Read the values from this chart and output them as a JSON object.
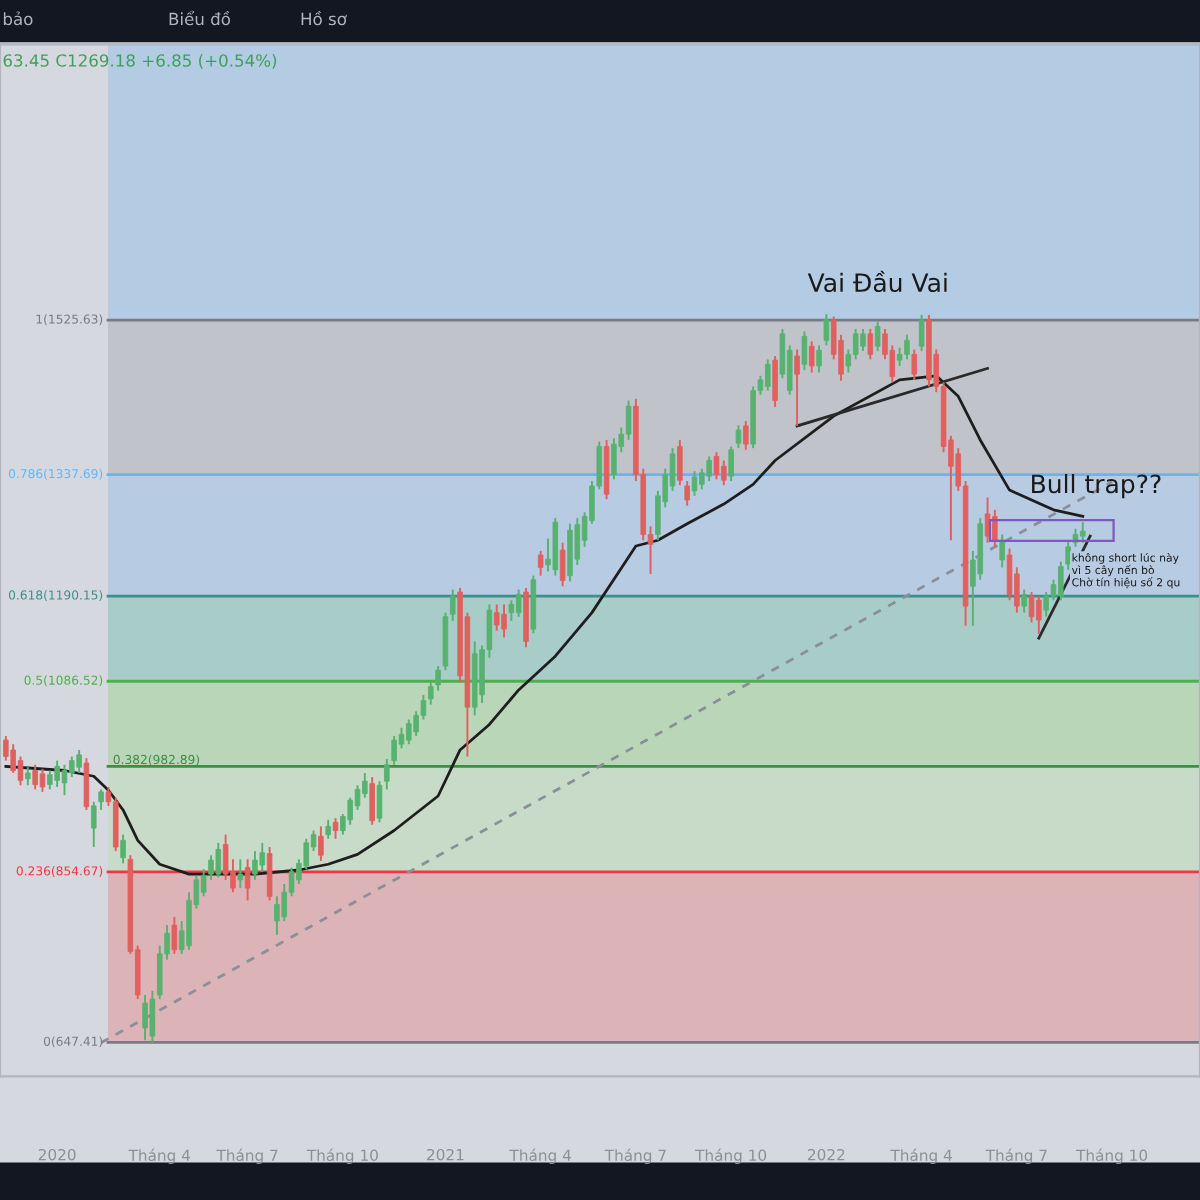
{
  "chart_data": {
    "type": "candlestick",
    "categories": [
      null,
      null,
      null,
      null,
      null,
      null,
      null,
      "2020",
      null,
      null,
      null,
      null,
      null,
      null,
      null,
      null,
      null,
      null,
      null,
      null,
      null,
      "Tháng 4",
      null,
      null,
      null,
      null,
      null,
      null,
      null,
      null,
      null,
      null,
      null,
      "Tháng 7",
      null,
      null,
      null,
      null,
      null,
      null,
      null,
      null,
      null,
      null,
      null,
      null,
      "Tháng 10",
      null,
      null,
      null,
      null,
      null,
      null,
      null,
      null,
      null,
      null,
      null,
      null,
      null,
      "2021",
      null,
      null,
      null,
      null,
      null,
      null,
      null,
      null,
      null,
      null,
      null,
      null,
      "Tháng 4",
      null,
      null,
      null,
      null,
      null,
      null,
      null,
      null,
      null,
      null,
      null,
      null,
      "Tháng 7",
      null,
      null,
      null,
      null,
      null,
      null,
      null,
      null,
      null,
      null,
      null,
      null,
      "Tháng 10",
      null,
      null,
      null,
      null,
      null,
      null,
      null,
      null,
      null,
      null,
      null,
      null,
      "2022",
      null,
      null,
      null,
      null,
      null,
      null,
      null,
      null,
      null,
      null,
      null,
      null,
      "Tháng 4",
      null,
      null,
      null,
      null,
      null,
      null,
      null,
      null,
      null,
      null,
      null,
      null,
      "Tháng 7",
      null,
      null,
      null,
      null,
      null,
      null,
      null,
      null,
      null,
      null,
      null,
      null,
      "Tháng 10"
    ],
    "ohlc": [
      [
        1015,
        1020,
        990,
        995
      ],
      [
        1003,
        1010,
        975,
        978
      ],
      [
        990,
        995,
        960,
        966
      ],
      [
        968,
        982,
        960,
        975
      ],
      [
        978,
        985,
        955,
        961
      ],
      [
        974,
        980,
        952,
        958
      ],
      [
        961,
        978,
        955,
        973
      ],
      [
        966,
        990,
        958,
        983
      ],
      [
        963,
        985,
        948,
        978
      ],
      [
        975,
        995,
        970,
        990
      ],
      [
        982,
        1003,
        975,
        997
      ],
      [
        987,
        993,
        930,
        934
      ],
      [
        908,
        940,
        885,
        935
      ],
      [
        940,
        955,
        930,
        952
      ],
      [
        952,
        958,
        935,
        940
      ],
      [
        940,
        945,
        880,
        885
      ],
      [
        872,
        900,
        865,
        893
      ],
      [
        870,
        875,
        755,
        758
      ],
      [
        760,
        765,
        700,
        705
      ],
      [
        665,
        705,
        650,
        695
      ],
      [
        655,
        710,
        647,
        700
      ],
      [
        705,
        765,
        700,
        755
      ],
      [
        755,
        790,
        748,
        780
      ],
      [
        790,
        800,
        755,
        760
      ],
      [
        760,
        795,
        755,
        783
      ],
      [
        765,
        830,
        760,
        820
      ],
      [
        815,
        850,
        810,
        845
      ],
      [
        830,
        858,
        825,
        850
      ],
      [
        852,
        875,
        845,
        869
      ],
      [
        852,
        890,
        848,
        882
      ],
      [
        888,
        900,
        845,
        852
      ],
      [
        855,
        870,
        830,
        835
      ],
      [
        845,
        870,
        835,
        852
      ],
      [
        860,
        870,
        820,
        835
      ],
      [
        852,
        880,
        845,
        869
      ],
      [
        863,
        890,
        855,
        878
      ],
      [
        877,
        885,
        820,
        825
      ],
      [
        795,
        825,
        778,
        815
      ],
      [
        800,
        840,
        795,
        830
      ],
      [
        830,
        860,
        825,
        855
      ],
      [
        845,
        870,
        840,
        865
      ],
      [
        862,
        895,
        858,
        890
      ],
      [
        885,
        905,
        880,
        900
      ],
      [
        898,
        910,
        868,
        875
      ],
      [
        900,
        918,
        895,
        910
      ],
      [
        915,
        920,
        895,
        905
      ],
      [
        905,
        925,
        900,
        922
      ],
      [
        918,
        945,
        912,
        942
      ],
      [
        935,
        960,
        930,
        955
      ],
      [
        950,
        975,
        945,
        965
      ],
      [
        962,
        970,
        912,
        917
      ],
      [
        920,
        965,
        915,
        960
      ],
      [
        965,
        992,
        955,
        985
      ],
      [
        990,
        1020,
        985,
        1015
      ],
      [
        1010,
        1030,
        1005,
        1022
      ],
      [
        1015,
        1040,
        1010,
        1035
      ],
      [
        1025,
        1050,
        1020,
        1045
      ],
      [
        1045,
        1070,
        1040,
        1063
      ],
      [
        1065,
        1085,
        1058,
        1080
      ],
      [
        1082,
        1105,
        1075,
        1100
      ],
      [
        1105,
        1170,
        1100,
        1165
      ],
      [
        1168,
        1198,
        1160,
        1190
      ],
      [
        1195,
        1200,
        1085,
        1093
      ],
      [
        1165,
        1170,
        995,
        1055
      ],
      [
        1055,
        1135,
        1045,
        1120
      ],
      [
        1070,
        1130,
        1060,
        1125
      ],
      [
        1125,
        1180,
        1115,
        1173
      ],
      [
        1170,
        1180,
        1148,
        1155
      ],
      [
        1168,
        1180,
        1140,
        1150
      ],
      [
        1170,
        1185,
        1160,
        1180
      ],
      [
        1170,
        1198,
        1165,
        1192
      ],
      [
        1195,
        1200,
        1128,
        1135
      ],
      [
        1150,
        1215,
        1145,
        1210
      ],
      [
        1240,
        1245,
        1215,
        1225
      ],
      [
        1228,
        1260,
        1220,
        1235
      ],
      [
        1222,
        1285,
        1215,
        1280
      ],
      [
        1246,
        1255,
        1202,
        1209
      ],
      [
        1215,
        1278,
        1208,
        1270
      ],
      [
        1235,
        1285,
        1228,
        1277
      ],
      [
        1258,
        1292,
        1250,
        1287
      ],
      [
        1282,
        1330,
        1278,
        1324
      ],
      [
        1324,
        1378,
        1320,
        1372
      ],
      [
        1372,
        1380,
        1308,
        1314
      ],
      [
        1338,
        1382,
        1332,
        1375
      ],
      [
        1372,
        1395,
        1365,
        1387
      ],
      [
        1387,
        1428,
        1380,
        1421
      ],
      [
        1421,
        1430,
        1330,
        1338
      ],
      [
        1338,
        1345,
        1258,
        1265
      ],
      [
        1265,
        1275,
        1217,
        1253
      ],
      [
        1265,
        1318,
        1258,
        1312
      ],
      [
        1305,
        1345,
        1298,
        1338
      ],
      [
        1324,
        1370,
        1318,
        1363
      ],
      [
        1372,
        1380,
        1325,
        1331
      ],
      [
        1324,
        1330,
        1300,
        1307
      ],
      [
        1318,
        1342,
        1312,
        1335
      ],
      [
        1326,
        1345,
        1320,
        1340
      ],
      [
        1336,
        1360,
        1330,
        1355
      ],
      [
        1360,
        1365,
        1332,
        1338
      ],
      [
        1348,
        1355,
        1325,
        1331
      ],
      [
        1336,
        1372,
        1330,
        1368
      ],
      [
        1376,
        1398,
        1370,
        1392
      ],
      [
        1397,
        1403,
        1368,
        1375
      ],
      [
        1375,
        1445,
        1370,
        1440
      ],
      [
        1440,
        1458,
        1435,
        1453
      ],
      [
        1445,
        1478,
        1440,
        1472
      ],
      [
        1477,
        1482,
        1420,
        1428
      ],
      [
        1460,
        1515,
        1455,
        1509
      ],
      [
        1440,
        1495,
        1435,
        1489
      ],
      [
        1482,
        1490,
        1397,
        1460
      ],
      [
        1472,
        1512,
        1465,
        1506
      ],
      [
        1494,
        1500,
        1462,
        1470
      ],
      [
        1470,
        1495,
        1462,
        1489
      ],
      [
        1501,
        1533,
        1495,
        1526
      ],
      [
        1526,
        1530,
        1478,
        1484
      ],
      [
        1501,
        1508,
        1452,
        1460
      ],
      [
        1470,
        1490,
        1462,
        1484
      ],
      [
        1484,
        1515,
        1478,
        1509
      ],
      [
        1494,
        1515,
        1488,
        1509
      ],
      [
        1509,
        1515,
        1478,
        1484
      ],
      [
        1494,
        1524,
        1488,
        1518
      ],
      [
        1509,
        1515,
        1478,
        1484
      ],
      [
        1489,
        1495,
        1450,
        1457
      ],
      [
        1477,
        1492,
        1470,
        1484
      ],
      [
        1484,
        1508,
        1478,
        1501
      ],
      [
        1484,
        1490,
        1453,
        1460
      ],
      [
        1494,
        1532,
        1488,
        1526
      ],
      [
        1526,
        1532,
        1445,
        1453
      ],
      [
        1484,
        1490,
        1438,
        1445
      ],
      [
        1445,
        1450,
        1365,
        1372
      ],
      [
        1380,
        1385,
        1258,
        1348
      ],
      [
        1363,
        1370,
        1318,
        1324
      ],
      [
        1324,
        1330,
        1154,
        1178
      ],
      [
        1202,
        1245,
        1154,
        1234
      ],
      [
        1217,
        1285,
        1210,
        1278
      ],
      [
        1290,
        1310,
        1255,
        1263
      ],
      [
        1287,
        1295,
        1250,
        1258
      ],
      [
        1234,
        1265,
        1225,
        1258
      ],
      [
        1240,
        1248,
        1185,
        1192
      ],
      [
        1217,
        1225,
        1170,
        1178
      ],
      [
        1178,
        1198,
        1170,
        1192
      ],
      [
        1190,
        1195,
        1158,
        1165
      ],
      [
        1185,
        1190,
        1144,
        1161
      ],
      [
        1173,
        1195,
        1165,
        1190
      ],
      [
        1190,
        1210,
        1185,
        1204
      ],
      [
        1190,
        1232,
        1185,
        1226
      ],
      [
        1229,
        1258,
        1222,
        1250
      ],
      [
        1255,
        1272,
        1250,
        1265
      ],
      [
        1263,
        1280,
        1255,
        1269
      ],
      null,
      null,
      null,
      null
    ],
    "series": [
      {
        "type": "line",
        "color": "#1e1e1e",
        "line_style": "solid",
        "values": [
          983,
          null,
          null,
          null,
          null,
          null,
          null,
          null,
          978,
          null,
          null,
          null,
          971,
          null,
          954,
          null,
          930,
          null,
          893,
          null,
          null,
          864,
          null,
          null,
          null,
          852,
          null,
          null,
          null,
          852,
          null,
          null,
          null,
          null,
          852,
          null,
          null,
          null,
          null,
          null,
          857,
          null,
          null,
          null,
          864,
          null,
          null,
          null,
          876,
          null,
          null,
          null,
          null,
          905,
          null,
          null,
          null,
          null,
          null,
          947,
          null,
          null,
          1003,
          null,
          null,
          null,
          1034,
          null,
          null,
          null,
          1076,
          null,
          null,
          null,
          null,
          1117,
          null,
          null,
          null,
          null,
          1170,
          null,
          null,
          null,
          1224,
          null,
          1251,
          null,
          null,
          1258,
          null,
          null,
          null,
          1278,
          null,
          null,
          null,
          null,
          1302,
          null,
          null,
          null,
          1326,
          null,
          null,
          1355,
          null,
          null,
          null,
          null,
          null,
          null,
          null,
          1409,
          null,
          null,
          null,
          null,
          null,
          null,
          null,
          null,
          1453,
          null,
          null,
          null,
          null,
          1458,
          null,
          null,
          1433,
          null,
          null,
          1380,
          null,
          null,
          null,
          1319,
          null,
          null,
          null,
          null,
          null,
          1295,
          null,
          null,
          null,
          1287,
          null,
          null,
          null,
          null
        ]
      },
      {
        "type": "line",
        "color": "#8a8f99",
        "line_style": "dashed",
        "values": [
          null,
          null,
          null,
          null,
          null,
          null,
          null,
          null,
          null,
          null,
          null,
          null,
          null,
          647,
          null,
          null,
          null,
          null,
          null,
          null,
          null,
          null,
          null,
          null,
          null,
          null,
          null,
          null,
          null,
          null,
          null,
          null,
          null,
          null,
          null,
          null,
          null,
          null,
          null,
          null,
          null,
          null,
          null,
          null,
          null,
          null,
          null,
          null,
          null,
          null,
          null,
          null,
          null,
          null,
          null,
          null,
          null,
          null,
          null,
          null,
          null,
          null,
          null,
          null,
          null,
          null,
          null,
          null,
          null,
          null,
          null,
          null,
          null,
          null,
          null,
          null,
          null,
          null,
          null,
          null,
          null,
          null,
          null,
          null,
          null,
          null,
          null,
          null,
          null,
          null,
          null,
          null,
          null,
          null,
          null,
          null,
          null,
          null,
          null,
          null,
          null,
          null,
          null,
          null,
          null,
          null,
          null,
          null,
          null,
          null,
          null,
          null,
          null,
          null,
          null,
          null,
          null,
          null,
          null,
          null,
          null,
          null,
          null,
          null,
          null,
          null,
          null,
          null,
          null,
          null,
          null,
          null,
          null,
          null,
          null,
          null,
          null,
          null,
          null,
          null,
          null,
          null,
          null,
          null,
          null,
          null,
          null,
          null,
          null,
          null,
          null,
          1329
        ]
      },
      {
        "type": "line",
        "color": "#2a2a2a",
        "line_style": "solid",
        "values": [
          null,
          null,
          null,
          null,
          null,
          null,
          null,
          null,
          null,
          null,
          null,
          null,
          null,
          null,
          null,
          null,
          null,
          null,
          null,
          null,
          null,
          null,
          null,
          null,
          null,
          null,
          null,
          null,
          null,
          null,
          null,
          null,
          null,
          null,
          null,
          null,
          null,
          null,
          null,
          null,
          null,
          null,
          null,
          null,
          null,
          null,
          null,
          null,
          null,
          null,
          null,
          null,
          null,
          null,
          null,
          null,
          null,
          null,
          null,
          null,
          null,
          null,
          null,
          null,
          null,
          null,
          null,
          null,
          null,
          null,
          null,
          null,
          null,
          null,
          null,
          null,
          null,
          null,
          null,
          null,
          null,
          null,
          null,
          null,
          null,
          null,
          null,
          null,
          null,
          null,
          null,
          null,
          null,
          null,
          null,
          null,
          null,
          null,
          null,
          null,
          null,
          null,
          null,
          null,
          null,
          null,
          null,
          null,
          1397,
          null,
          null,
          null,
          null,
          null,
          null,
          null,
          null,
          null,
          null,
          null,
          null,
          null,
          null,
          null,
          null,
          null,
          null,
          null,
          null,
          null,
          null,
          null,
          null,
          null,
          1467,
          null,
          null,
          null,
          null,
          null,
          null,
          null,
          null,
          null,
          null,
          null,
          null,
          null,
          null,
          null,
          null,
          null
        ]
      },
      {
        "type": "line",
        "color": "#2a2a2a",
        "line_style": "solid",
        "values": [
          null,
          null,
          null,
          null,
          null,
          null,
          null,
          null,
          null,
          null,
          null,
          null,
          null,
          null,
          null,
          null,
          null,
          null,
          null,
          null,
          null,
          null,
          null,
          null,
          null,
          null,
          null,
          null,
          null,
          null,
          null,
          null,
          null,
          null,
          null,
          null,
          null,
          null,
          null,
          null,
          null,
          null,
          null,
          null,
          null,
          null,
          null,
          null,
          null,
          null,
          null,
          null,
          null,
          null,
          null,
          null,
          null,
          null,
          null,
          null,
          null,
          null,
          null,
          null,
          null,
          null,
          null,
          null,
          null,
          null,
          null,
          null,
          null,
          null,
          null,
          null,
          null,
          null,
          null,
          null,
          null,
          null,
          null,
          null,
          null,
          null,
          null,
          null,
          null,
          null,
          null,
          null,
          null,
          null,
          null,
          null,
          null,
          null,
          null,
          null,
          null,
          null,
          null,
          null,
          null,
          null,
          null,
          null,
          null,
          null,
          null,
          null,
          null,
          null,
          null,
          null,
          null,
          null,
          null,
          null,
          null,
          null,
          null,
          null,
          null,
          null,
          null,
          null,
          null,
          null,
          null,
          null,
          null,
          null,
          null,
          null,
          null,
          null,
          null,
          null,
          null,
          1139,
          null,
          null,
          null,
          null,
          null,
          null,
          1263,
          null,
          null,
          null
        ]
      }
    ],
    "ylim": [
      606,
      1861
    ],
    "bands": [
      {
        "axis": "y",
        "from": 1525.63,
        "to": 1861,
        "color": "#b3cbe3"
      },
      {
        "axis": "y",
        "from": 1337.69,
        "to": 1525.63,
        "color": "#c0c3ca"
      },
      {
        "axis": "y",
        "from": 1190.15,
        "to": 1337.69,
        "color": "#b7cbe2"
      },
      {
        "axis": "y",
        "from": 1086.52,
        "to": 1190.15,
        "color": "#a8ccc8"
      },
      {
        "axis": "y",
        "from": 982.89,
        "to": 1086.52,
        "color": "#bad6b8"
      },
      {
        "axis": "y",
        "from": 854.67,
        "to": 982.89,
        "color": "#c8dac8"
      },
      {
        "axis": "y",
        "from": 647.41,
        "to": 854.67,
        "color": "#dcb3b6"
      }
    ],
    "ref_lines": [
      {
        "axis": "y",
        "value": 1525.63,
        "label": "1(1525.63)",
        "color": "#787b86"
      },
      {
        "axis": "y",
        "value": 1337.69,
        "label": "0.786(1337.69)",
        "color": "#64b5f6"
      },
      {
        "axis": "y",
        "value": 1190.15,
        "label": "0.618(1190.15)",
        "color": "#3d8f8a"
      },
      {
        "axis": "y",
        "value": 1086.52,
        "label": "0.5(1086.52)",
        "color": "#4caf50"
      },
      {
        "axis": "y",
        "value": 982.89,
        "label": "0.382(982.89)",
        "color": "#3e8e45"
      },
      {
        "axis": "y",
        "value": 854.67,
        "label": "0.236(854.67)",
        "color": "#f23645"
      },
      {
        "axis": "y",
        "value": 647.41,
        "label": "0(647.41)",
        "color": "#787b86"
      }
    ],
    "annotations": [
      "63.45 C1269.18 +6.85 (+0.54%)",
      "Vai Đầu Vai",
      "Bull trap??",
      "không short lúc này\nvì 5 cây nến bò\nChờ tín hiệu số 2 qu",
      "bảo",
      "Biểu đồ",
      "Hồ sơ"
    ],
    "tick_labels": "x"
  }
}
